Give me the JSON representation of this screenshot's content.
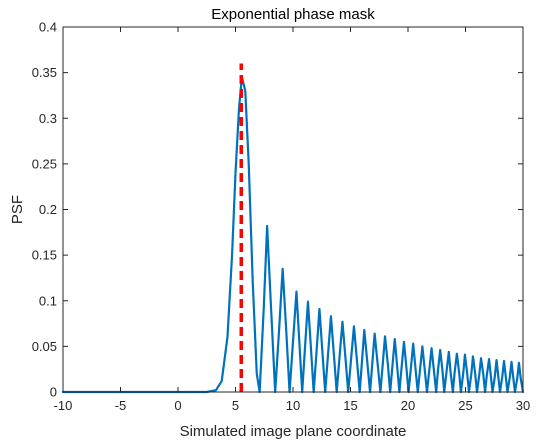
{
  "chart_data": {
    "type": "line",
    "title": "Exponential phase mask",
    "xlabel": "Simulated image plane coordinate",
    "ylabel": "PSF",
    "xlim": [
      -10,
      30
    ],
    "ylim": [
      0,
      0.4
    ],
    "x_ticks": [
      "-10",
      "-5",
      "0",
      "5",
      "10",
      "15",
      "20",
      "25",
      "30"
    ],
    "y_ticks": [
      "0",
      "0.05",
      "0.1",
      "0.15",
      "0.2",
      "0.25",
      "0.3",
      "0.35",
      "0.4"
    ],
    "grid": false,
    "box": true,
    "series": [
      {
        "style": "solid",
        "color": "#0072BD",
        "points": [
          [
            -10,
            0
          ],
          [
            2.5,
            0
          ],
          [
            3.3,
            0.002
          ],
          [
            3.8,
            0.012
          ],
          [
            4.3,
            0.06
          ],
          [
            4.7,
            0.15
          ],
          [
            5.0,
            0.24
          ],
          [
            5.3,
            0.31
          ],
          [
            5.55,
            0.345
          ],
          [
            5.85,
            0.33
          ],
          [
            6.15,
            0.25
          ],
          [
            6.5,
            0.12
          ],
          [
            6.85,
            0.02
          ],
          [
            7.1,
            0.0
          ],
          [
            7.45,
            0.09
          ],
          [
            7.75,
            0.182
          ],
          [
            8.1,
            0.09
          ],
          [
            8.45,
            0.0
          ],
          [
            8.8,
            0.07
          ],
          [
            9.1,
            0.135
          ],
          [
            9.4,
            0.07
          ],
          [
            9.7,
            0.0
          ],
          [
            10.0,
            0.055
          ],
          [
            10.3,
            0.11
          ],
          [
            10.55,
            0.055
          ],
          [
            10.8,
            0.0
          ],
          [
            11.05,
            0.05
          ],
          [
            11.3,
            0.099
          ],
          [
            11.55,
            0.05
          ],
          [
            11.8,
            0.0
          ],
          [
            12.05,
            0.045
          ],
          [
            12.3,
            0.091
          ],
          [
            12.55,
            0.045
          ],
          [
            12.8,
            0.0
          ],
          [
            13.05,
            0.042
          ],
          [
            13.3,
            0.083
          ],
          [
            13.55,
            0.042
          ],
          [
            13.8,
            0.0
          ],
          [
            14.05,
            0.039
          ],
          [
            14.3,
            0.077
          ],
          [
            14.55,
            0.039
          ],
          [
            14.8,
            0.0
          ],
          [
            15.05,
            0.036
          ],
          [
            15.3,
            0.072
          ],
          [
            15.55,
            0.036
          ],
          [
            15.8,
            0.0
          ],
          [
            16.0,
            0.034
          ],
          [
            16.2,
            0.068
          ],
          [
            16.45,
            0.034
          ],
          [
            16.7,
            0.0
          ],
          [
            16.9,
            0.032
          ],
          [
            17.1,
            0.064
          ],
          [
            17.35,
            0.032
          ],
          [
            17.6,
            0.0
          ],
          [
            17.8,
            0.03
          ],
          [
            18.0,
            0.061
          ],
          [
            18.25,
            0.03
          ],
          [
            18.45,
            0.0
          ],
          [
            18.65,
            0.029
          ],
          [
            18.85,
            0.058
          ],
          [
            19.05,
            0.029
          ],
          [
            19.25,
            0.0
          ],
          [
            19.45,
            0.028
          ],
          [
            19.65,
            0.055
          ],
          [
            19.85,
            0.028
          ],
          [
            20.05,
            0.0
          ],
          [
            20.25,
            0.026
          ],
          [
            20.45,
            0.053
          ],
          [
            20.65,
            0.026
          ],
          [
            20.85,
            0.0
          ],
          [
            21.05,
            0.025
          ],
          [
            21.25,
            0.05
          ],
          [
            21.45,
            0.025
          ],
          [
            21.65,
            0.0
          ],
          [
            21.85,
            0.024
          ],
          [
            22.05,
            0.048
          ],
          [
            22.25,
            0.024
          ],
          [
            22.45,
            0.0
          ],
          [
            22.6,
            0.023
          ],
          [
            22.8,
            0.046
          ],
          [
            23.0,
            0.023
          ],
          [
            23.15,
            0.0
          ],
          [
            23.35,
            0.022
          ],
          [
            23.55,
            0.044
          ],
          [
            23.7,
            0.022
          ],
          [
            23.9,
            0.0
          ],
          [
            24.05,
            0.021
          ],
          [
            24.25,
            0.042
          ],
          [
            24.45,
            0.021
          ],
          [
            24.6,
            0.0
          ],
          [
            24.8,
            0.02
          ],
          [
            24.95,
            0.041
          ],
          [
            25.15,
            0.02
          ],
          [
            25.3,
            0.0
          ],
          [
            25.5,
            0.019
          ],
          [
            25.65,
            0.039
          ],
          [
            25.85,
            0.019
          ],
          [
            26.0,
            0.0
          ],
          [
            26.2,
            0.019
          ],
          [
            26.35,
            0.037
          ],
          [
            26.55,
            0.019
          ],
          [
            26.7,
            0.0
          ],
          [
            26.85,
            0.018
          ],
          [
            27.05,
            0.036
          ],
          [
            27.2,
            0.018
          ],
          [
            27.35,
            0.0
          ],
          [
            27.55,
            0.017
          ],
          [
            27.7,
            0.035
          ],
          [
            27.85,
            0.017
          ],
          [
            28.0,
            0.0
          ],
          [
            28.2,
            0.017
          ],
          [
            28.35,
            0.034
          ],
          [
            28.5,
            0.017
          ],
          [
            28.65,
            0.0
          ],
          [
            28.85,
            0.016
          ],
          [
            29.0,
            0.033
          ],
          [
            29.15,
            0.016
          ],
          [
            29.3,
            0.0
          ],
          [
            29.5,
            0.015
          ],
          [
            29.65,
            0.032
          ],
          [
            29.8,
            0.015
          ],
          [
            30.0,
            0.0
          ]
        ]
      },
      {
        "style": "dashed",
        "color": "#FF0000",
        "points": [
          [
            5.5,
            0
          ],
          [
            5.5,
            0.36
          ]
        ]
      }
    ]
  }
}
